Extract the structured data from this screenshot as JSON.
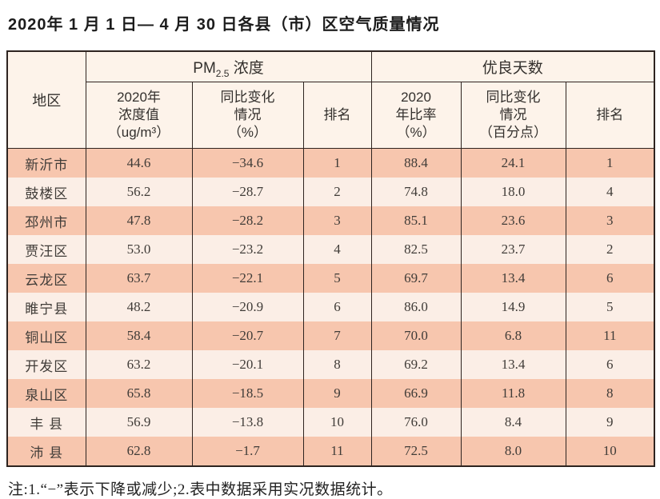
{
  "title": "2020年 1 月 1 日— 4 月 30 日各县（市）区空气质量情况",
  "table": {
    "corner": "地区",
    "group_pm": {
      "prefix": "PM",
      "sub": "2.5",
      "suffix": " 浓度"
    },
    "group_good": "优良天数",
    "subheaders": {
      "pm_value": "2020年\n浓度值\n（ug/m³）",
      "pm_change": "同比变化\n情况\n（%）",
      "pm_rank": "排名",
      "good_ratio": "2020\n年比率\n（%）",
      "good_change": "同比变化\n情况\n（百分点）",
      "good_rank": "排名"
    },
    "rows": [
      {
        "region": "新沂市",
        "pm_value": "44.6",
        "pm_change": "−34.6",
        "pm_rank": "1",
        "good_ratio": "88.4",
        "good_change": "24.1",
        "good_rank": "1"
      },
      {
        "region": "鼓楼区",
        "pm_value": "56.2",
        "pm_change": "−28.7",
        "pm_rank": "2",
        "good_ratio": "74.8",
        "good_change": "18.0",
        "good_rank": "4"
      },
      {
        "region": "邳州市",
        "pm_value": "47.8",
        "pm_change": "−28.2",
        "pm_rank": "3",
        "good_ratio": "85.1",
        "good_change": "23.6",
        "good_rank": "3"
      },
      {
        "region": "贾汪区",
        "pm_value": "53.0",
        "pm_change": "−23.2",
        "pm_rank": "4",
        "good_ratio": "82.5",
        "good_change": "23.7",
        "good_rank": "2"
      },
      {
        "region": "云龙区",
        "pm_value": "63.7",
        "pm_change": "−22.1",
        "pm_rank": "5",
        "good_ratio": "69.7",
        "good_change": "13.4",
        "good_rank": "6"
      },
      {
        "region": "睢宁县",
        "pm_value": "48.2",
        "pm_change": "−20.9",
        "pm_rank": "6",
        "good_ratio": "86.0",
        "good_change": "14.9",
        "good_rank": "5"
      },
      {
        "region": "铜山区",
        "pm_value": "58.4",
        "pm_change": "−20.7",
        "pm_rank": "7",
        "good_ratio": "70.0",
        "good_change": "6.8",
        "good_rank": "11"
      },
      {
        "region": "开发区",
        "pm_value": "63.2",
        "pm_change": "−20.1",
        "pm_rank": "8",
        "good_ratio": "69.2",
        "good_change": "13.4",
        "good_rank": "6"
      },
      {
        "region": "泉山区",
        "pm_value": "65.8",
        "pm_change": "−18.5",
        "pm_rank": "9",
        "good_ratio": "66.9",
        "good_change": "11.8",
        "good_rank": "8"
      },
      {
        "region": "丰 县",
        "pm_value": "56.9",
        "pm_change": "−13.8",
        "pm_rank": "10",
        "good_ratio": "76.0",
        "good_change": "8.4",
        "good_rank": "9"
      },
      {
        "region": "沛 县",
        "pm_value": "62.8",
        "pm_change": "−1.7",
        "pm_rank": "11",
        "good_ratio": "72.5",
        "good_change": "8.0",
        "good_rank": "10"
      }
    ]
  },
  "note": "注:1.“−”表示下降或减少;2.表中数据采用实况数据统计。",
  "colors": {
    "row_dark": "#f7c6ae",
    "row_light": "#fbeee6",
    "header_bg": "#fdf3ea",
    "border": "#2e2420"
  }
}
